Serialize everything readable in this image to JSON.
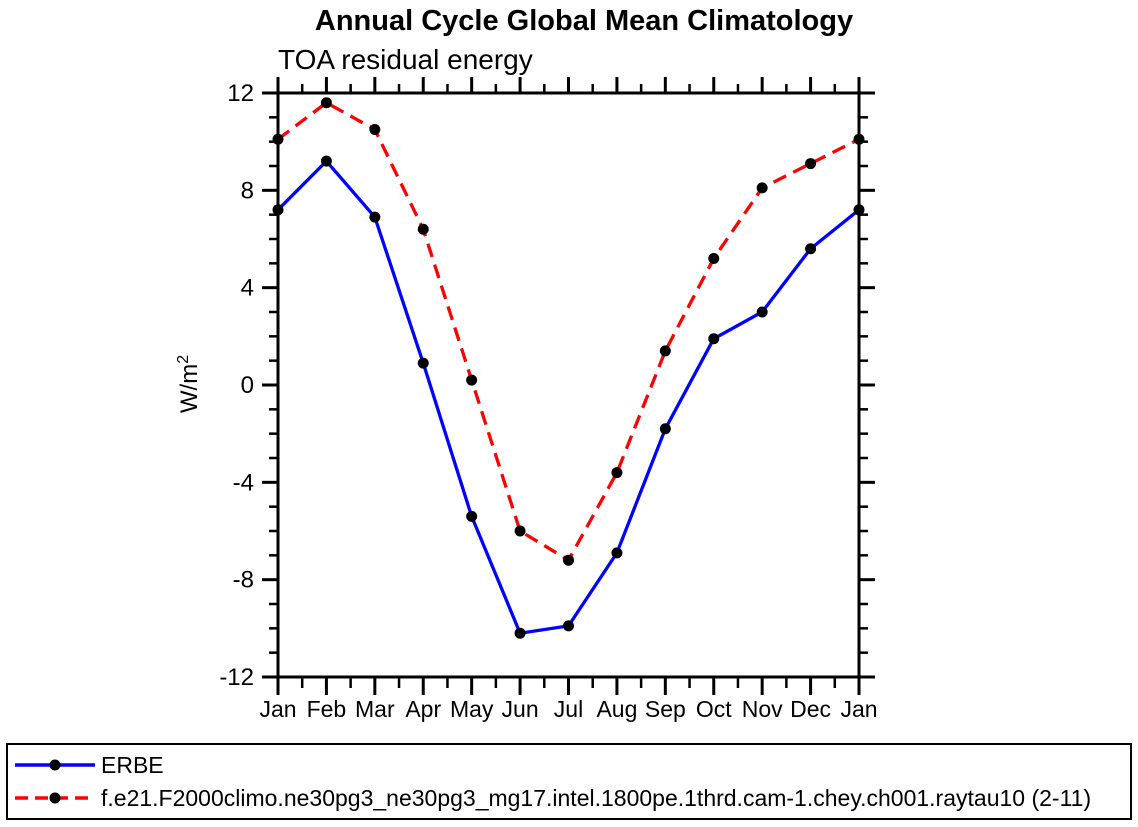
{
  "title": "Annual Cycle Global Mean Climatology",
  "subtitle": "TOA residual energy",
  "legend": {
    "entries": [
      {
        "label": "ERBE",
        "color": "#0000ff",
        "style": "solid"
      },
      {
        "label": "f.e21.F2000climo.ne30pg3_ne30pg3_mg17.intel.1800pe.1thrd.cam-1.chey.ch001.raytau10 (2-11)",
        "color": "#ff0000",
        "style": "dashed"
      }
    ]
  },
  "chart_data": {
    "type": "line",
    "title": "Annual Cycle Global Mean Climatology",
    "subtitle": "TOA residual energy",
    "ylabel": "W/m2",
    "ylabel_base": "W/m",
    "ylabel_sup": "2",
    "x_categories": [
      "Jan",
      "Feb",
      "Mar",
      "Apr",
      "May",
      "Jun",
      "Jul",
      "Aug",
      "Sep",
      "Oct",
      "Nov",
      "Dec",
      "Jan"
    ],
    "ylim": [
      -12,
      12
    ],
    "ytick_major_step": 4,
    "ytick_minor_step": 1,
    "grid": false,
    "legend_position": "bottom",
    "marker": {
      "shape": "circle",
      "color": "#000000"
    },
    "series": [
      {
        "name": "ERBE",
        "color": "#0000ff",
        "style": "solid",
        "values": [
          7.2,
          9.2,
          6.9,
          0.9,
          -5.4,
          -10.2,
          -9.9,
          -6.9,
          -1.8,
          1.9,
          3.0,
          5.6,
          7.2
        ]
      },
      {
        "name": "f.e21.F2000climo.ne30pg3_ne30pg3_mg17.intel.1800pe.1thrd.cam-1.chey.ch001.raytau10 (2-11)",
        "color": "#ff0000",
        "style": "dashed",
        "values": [
          10.1,
          11.6,
          10.5,
          6.4,
          0.2,
          -6.0,
          -7.2,
          -3.6,
          1.4,
          5.2,
          8.1,
          9.1,
          10.1
        ]
      }
    ]
  }
}
